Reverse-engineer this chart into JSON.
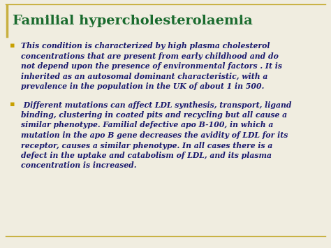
{
  "title": "Familial hypercholesterolaemia",
  "title_color": "#1a6b2e",
  "background_color": "#f0ede0",
  "border_color": "#c8b040",
  "bullet_color": "#c8a000",
  "text_color": "#1a1a6e",
  "b1_lines": [
    "This condition is characterized by high plasma cholesterol",
    "concentrations that are present from early childhood and do",
    "not depend upon the presence of environmental factors . It is",
    "inherited as an autosomal dominant characteristic, with a",
    "prevalence in the population in the UK of about 1 in 500."
  ],
  "b2_lines": [
    " Different mutations can affect LDL synthesis, transport, ligand",
    "binding, clustering in coated pits and recycling but all cause a",
    "similar phenotype. Familial defective apo B-100, in which a",
    "mutation in the apo B gene decreases the avidity of LDL for its",
    "receptor, causes a similar phenotype. In all cases there is a",
    "defect in the uptake and catabolism of LDL, and its plasma",
    "concentration is increased."
  ],
  "title_fontsize": 14,
  "body_fontsize": 7.8,
  "bullet_fontsize": 8
}
